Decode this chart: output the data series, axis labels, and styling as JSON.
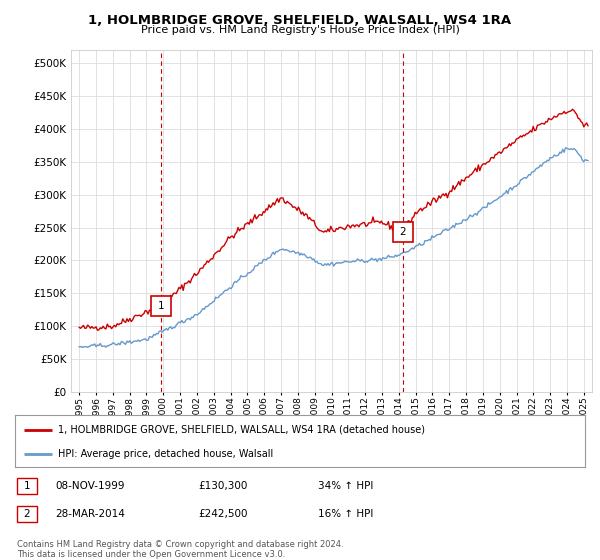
{
  "title": "1, HOLMBRIDGE GROVE, SHELFIELD, WALSALL, WS4 1RA",
  "subtitle": "Price paid vs. HM Land Registry's House Price Index (HPI)",
  "legend_line1": "1, HOLMBRIDGE GROVE, SHELFIELD, WALSALL, WS4 1RA (detached house)",
  "legend_line2": "HPI: Average price, detached house, Walsall",
  "footer": "Contains HM Land Registry data © Crown copyright and database right 2024.\nThis data is licensed under the Open Government Licence v3.0.",
  "sale1_label": "1",
  "sale1_date": "08-NOV-1999",
  "sale1_price": "£130,300",
  "sale1_hpi": "34% ↑ HPI",
  "sale1_x": 1999.86,
  "sale1_y": 130300,
  "sale2_label": "2",
  "sale2_date": "28-MAR-2014",
  "sale2_price": "£242,500",
  "sale2_hpi": "16% ↑ HPI",
  "sale2_x": 2014.23,
  "sale2_y": 242500,
  "red_color": "#cc0000",
  "blue_color": "#6699cc",
  "vline_color": "#cc0000",
  "grid_color": "#dddddd",
  "bg_color": "#ffffff",
  "ylim": [
    0,
    520000
  ],
  "xlim": [
    1994.5,
    2025.5
  ],
  "yticks": [
    0,
    50000,
    100000,
    150000,
    200000,
    250000,
    300000,
    350000,
    400000,
    450000,
    500000
  ],
  "xticks": [
    1995,
    1996,
    1997,
    1998,
    1999,
    2000,
    2001,
    2002,
    2003,
    2004,
    2005,
    2006,
    2007,
    2008,
    2009,
    2010,
    2011,
    2012,
    2013,
    2014,
    2015,
    2016,
    2017,
    2018,
    2019,
    2020,
    2021,
    2022,
    2023,
    2024,
    2025
  ]
}
